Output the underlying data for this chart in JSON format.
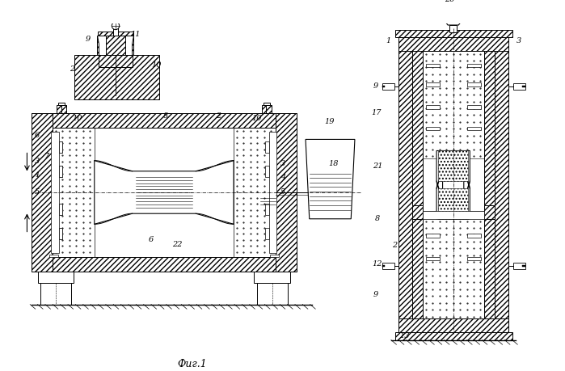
{
  "bg_color": "#ffffff",
  "line_color": "#000000",
  "fig_width": 6.99,
  "fig_height": 4.59,
  "title": "Фиг.1"
}
